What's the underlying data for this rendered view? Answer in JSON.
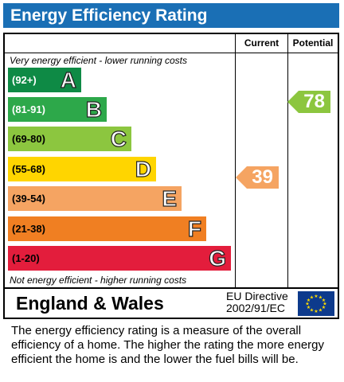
{
  "title": "Energy Efficiency Rating",
  "headers": {
    "current": "Current",
    "potential": "Potential"
  },
  "notes": {
    "top": "Very energy efficient - lower running costs",
    "bottom": "Not energy efficient - higher running costs"
  },
  "bands": [
    {
      "range": "(92+)",
      "letter": "A",
      "color": "#0e8a45"
    },
    {
      "range": "(81-91)",
      "letter": "B",
      "color": "#2da84a"
    },
    {
      "range": "(69-80)",
      "letter": "C",
      "color": "#8cc63f"
    },
    {
      "range": "(55-68)",
      "letter": "D",
      "color": "#ffd500"
    },
    {
      "range": "(39-54)",
      "letter": "E",
      "color": "#f5a462"
    },
    {
      "range": "(21-38)",
      "letter": "F",
      "color": "#f07f22"
    },
    {
      "range": "(1-20)",
      "letter": "G",
      "color": "#e31d3c"
    }
  ],
  "ratings": {
    "current": {
      "value": "39",
      "band": "E",
      "color": "#f5a462"
    },
    "potential": {
      "value": "78",
      "band": "C",
      "color": "#8cc63f"
    }
  },
  "footer": {
    "region": "England & Wales",
    "directive_line1": "EU Directive",
    "directive_line2": "2002/91/EC",
    "flag_icon": "eu-flag-icon"
  },
  "description": "The energy efficiency rating is a measure of the overall efficiency of a home.  The higher the rating the more energy efficient the home is and the lower the fuel bills will be."
}
